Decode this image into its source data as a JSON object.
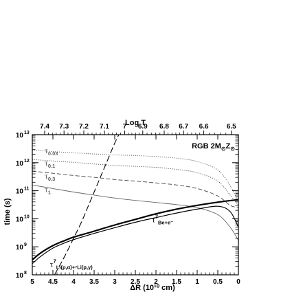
{
  "chart_data": {
    "type": "line",
    "xlabel": "ΔR (10¹⁰ cm)",
    "ylabel": "time (s)",
    "top_axis_label": "Log T",
    "annotation_box": {
      "text": "RGB 2M",
      "sub1": "⊙",
      "text2": "Z",
      "sub2": "⊙"
    },
    "xlim": [
      5,
      0
    ],
    "ylim": [
      100000000,
      10000000000000
    ],
    "y_scale": "log",
    "x_ticks": [
      5,
      4.5,
      4,
      3.5,
      3,
      2.5,
      2,
      1.5,
      1,
      0.5,
      0
    ],
    "x_tick_labels": [
      "5",
      "4.5",
      "4",
      "3.5",
      "3",
      "2.5",
      "2",
      "1.5",
      "1",
      "0.5",
      "0"
    ],
    "y_ticks": [
      100000000,
      1000000000,
      10000000000,
      100000000000,
      1000000000000,
      10000000000000
    ],
    "y_tick_labels": [
      {
        "base": "10",
        "exp": "8"
      },
      {
        "base": "10",
        "exp": "9"
      },
      {
        "base": "10",
        "exp": "10"
      },
      {
        "base": "10",
        "exp": "11"
      },
      {
        "base": "10",
        "exp": "12"
      },
      {
        "base": "10",
        "exp": "13"
      }
    ],
    "top_ticks": [
      {
        "label": "7.4",
        "x": 4.7
      },
      {
        "label": "7.3",
        "x": 4.23
      },
      {
        "label": "7.2",
        "x": 3.75
      },
      {
        "label": "7.1",
        "x": 3.25
      },
      {
        "label": "7",
        "x": 2.76
      },
      {
        "label": "6.9",
        "x": 2.32
      },
      {
        "label": "6.8",
        "x": 1.8
      },
      {
        "label": "6.7",
        "x": 1.33
      },
      {
        "label": "6.6",
        "x": 0.84
      },
      {
        "label": "6.5",
        "x": 0.17
      }
    ],
    "series": [
      {
        "label_main": "τ",
        "label_sub": "0.03",
        "label_x": 4.7,
        "label_y": 2200000000000,
        "style": "dotted",
        "color": "#666666",
        "x": [
          5,
          4.5,
          4,
          3.5,
          3,
          2.5,
          2,
          1.5,
          1,
          0.5,
          0.2,
          0
        ],
        "y": [
          2800000000000,
          2500000000000,
          2250000000000,
          2050000000000,
          1900000000000,
          1800000000000,
          1650000000000,
          1450000000000,
          1100000000000,
          550000000000,
          150000000000,
          40000000000
        ]
      },
      {
        "label_main": "τ",
        "label_sub": "0.1",
        "label_x": 4.7,
        "label_y": 800000000000,
        "style": "dotted",
        "color": "#555555",
        "x": [
          5,
          4.5,
          4,
          3.5,
          3,
          2.5,
          2,
          1.5,
          1,
          0.5,
          0.2,
          0
        ],
        "y": [
          1300000000000,
          1150000000000,
          1030000000000,
          900000000000,
          800000000000,
          740000000000,
          680000000000,
          580000000000,
          440000000000,
          220000000000,
          70000000000,
          30000000000
        ]
      },
      {
        "label_main": "τ",
        "label_sub": "0.3",
        "label_x": 4.7,
        "label_y": 270000000000,
        "style": "dashed",
        "color": "#555555",
        "x": [
          5,
          4.5,
          4,
          3.5,
          3,
          2.5,
          2,
          1.5,
          1,
          0.5,
          0.2,
          0
        ],
        "y": [
          500000000000,
          420000000000,
          350000000000,
          300000000000,
          250000000000,
          220000000000,
          190000000000,
          160000000000,
          120000000000,
          65000000000,
          30000000000,
          25000000000
        ]
      },
      {
        "label_main": "τ",
        "label_sub": "1",
        "label_x": 4.7,
        "label_y": 90000000000,
        "style": "solid-thin",
        "color": "#666666",
        "x": [
          5,
          4.5,
          4,
          3.5,
          3,
          2.5,
          2,
          1.5,
          1,
          0.5,
          0.2,
          0
        ],
        "y": [
          160000000000,
          120000000000,
          90000000000,
          70000000000,
          55000000000,
          45000000000,
          38000000000,
          32000000000,
          25000000000,
          14000000000,
          5000000000,
          1700000000
        ]
      },
      {
        "label_main": "τ",
        "label_sup": "7",
        "label_sub": "Be+e⁻",
        "label_x": 2.1,
        "label_y": 7500000000,
        "style": "solid-thick",
        "color": "#000000",
        "x": [
          5,
          4.8,
          4.5,
          4.2,
          4,
          3.5,
          3,
          2.5,
          2,
          1.5,
          1,
          0.5,
          0
        ],
        "y": [
          340000000,
          600000000,
          1100000000,
          1700000000,
          2200000000,
          3600000000,
          6000000000,
          9500000000,
          15000000000,
          22000000000,
          30000000000,
          39000000000,
          48000000000
        ]
      },
      {
        "label_main": "τ",
        "label_sup": "7",
        "label_sub": "Li(p,α)+⁷Li(p,γ)",
        "label_x": 4.57,
        "label_y": 190000000,
        "style": "long-dash",
        "color": "#000000",
        "x": [
          4.46,
          4.2,
          4,
          3.8,
          3.6,
          3.4,
          3.2,
          3.0,
          2.9
        ],
        "y": [
          100000000,
          500000000,
          2000000000,
          8000000000,
          40000000000,
          200000000000,
          1000000000000,
          5000000000000,
          10000000000000
        ]
      },
      {
        "label_main": "",
        "style": "solid-medium",
        "color": "#000000",
        "x": [
          5,
          4.8,
          4.5,
          4.2,
          4,
          3.5,
          3,
          2.5,
          2,
          1.5,
          1,
          0.5,
          0.2,
          0
        ],
        "y": [
          250000000,
          450000000,
          900000000,
          1400000000,
          1800000000,
          3000000000,
          4800000000,
          7500000000,
          11000000000,
          16000000000,
          22000000000,
          28000000000,
          18000000000,
          5000000000
        ]
      }
    ]
  }
}
